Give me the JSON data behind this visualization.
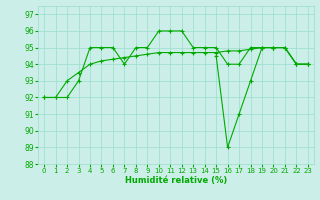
{
  "title": "",
  "xlabel": "Humidité relative (%)",
  "ylabel": "",
  "bg_color": "#cceee8",
  "grid_color": "#99ddcc",
  "line_color": "#00aa00",
  "ylim": [
    88,
    97.5
  ],
  "xlim": [
    -0.5,
    23.5
  ],
  "yticks": [
    88,
    89,
    90,
    91,
    92,
    93,
    94,
    95,
    96,
    97
  ],
  "xticks": [
    0,
    1,
    2,
    3,
    4,
    5,
    6,
    7,
    8,
    9,
    10,
    11,
    12,
    13,
    14,
    15,
    16,
    17,
    18,
    19,
    20,
    21,
    22,
    23
  ],
  "line1": [
    92,
    92,
    92,
    93,
    95,
    95,
    95,
    94,
    95,
    95,
    96,
    96,
    96,
    95,
    95,
    95,
    94,
    94,
    95,
    95,
    95,
    95,
    94,
    94
  ],
  "line2": [
    92,
    92,
    93,
    93.5,
    94,
    94.2,
    94.3,
    94.4,
    94.5,
    94.6,
    94.7,
    94.7,
    94.7,
    94.7,
    94.7,
    94.7,
    94.8,
    94.8,
    94.9,
    95,
    95,
    95,
    94,
    94
  ],
  "line3": [
    null,
    null,
    null,
    null,
    null,
    null,
    null,
    null,
    null,
    null,
    null,
    null,
    null,
    null,
    null,
    94.5,
    89,
    91,
    93,
    95,
    95,
    95,
    94,
    94
  ]
}
